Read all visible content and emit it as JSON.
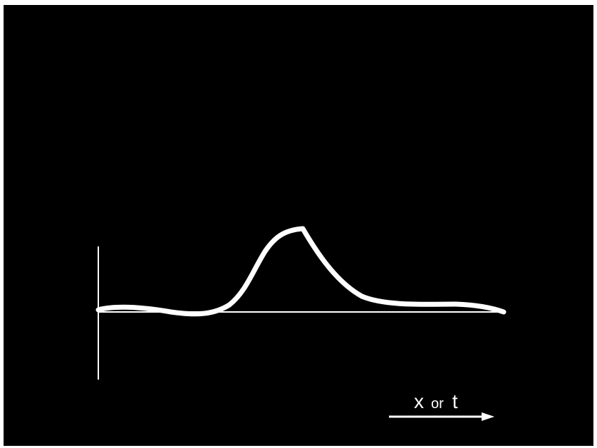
{
  "diagram": {
    "axis_label": {
      "var1": "x",
      "connector": "or",
      "var2": "t"
    },
    "colors": {
      "background": "#000000",
      "foreground": "#ffffff"
    }
  }
}
